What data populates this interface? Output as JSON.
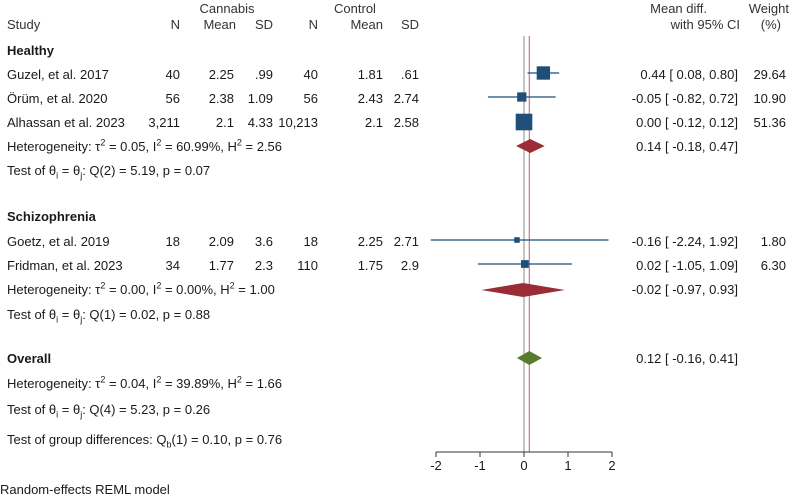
{
  "header": {
    "study": "Study",
    "group1": "Cannabis",
    "group2": "Control",
    "n": "N",
    "mean": "Mean",
    "sd": "SD",
    "effect_line1": "Mean diff.",
    "effect_line2": "with 95% CI",
    "weight_line1": "Weight",
    "weight_line2": "(%)"
  },
  "groups": [
    {
      "label": "Healthy",
      "studies": [
        {
          "name": "Guzel, et al. 2017",
          "n1": "40",
          "m1": "2.25",
          "sd1": ".99",
          "n2": "40",
          "m2": "1.81",
          "sd2": ".61",
          "ci": "0.44 [ 0.08, 0.80]",
          "weight": "29.64"
        },
        {
          "name": "Örüm, et al. 2020",
          "n1": "56",
          "m1": "2.38",
          "sd1": "1.09",
          "n2": "56",
          "m2": "2.43",
          "sd2": "2.74",
          "ci": "-0.05 [ -0.82, 0.72]",
          "weight": "10.90"
        },
        {
          "name": "Alhassan et al. 2023",
          "n1": "3,211",
          "m1": "2.1",
          "sd1": "4.33",
          "n2": "10,213",
          "m2": "2.1",
          "sd2": "2.58",
          "ci": "0.00 [ -0.12, 0.12]",
          "weight": "51.36"
        }
      ],
      "het": {
        "tau2": "0.05",
        "i2": "60.99%",
        "h2": "2.56"
      },
      "summary_ci": "0.14 [ -0.18, 0.47]",
      "test": {
        "df": "2",
        "q": "5.19",
        "p": "0.07"
      }
    },
    {
      "label": "Schizophrenia",
      "studies": [
        {
          "name": "Goetz, et al. 2019",
          "n1": "18",
          "m1": "2.09",
          "sd1": "3.6",
          "n2": "18",
          "m2": "2.25",
          "sd2": "2.71",
          "ci": "-0.16 [ -2.24, 1.92]",
          "weight": "1.80"
        },
        {
          "name": "Fridman, et al. 2023",
          "n1": "34",
          "m1": "1.77",
          "sd1": "2.3",
          "n2": "110",
          "m2": "1.75",
          "sd2": "2.9",
          "ci": "0.02 [ -1.05, 1.09]",
          "weight": "6.30"
        }
      ],
      "het": {
        "tau2": "0.00",
        "i2": "0.00%",
        "h2": "1.00"
      },
      "summary_ci": "-0.02 [ -0.97, 0.93]",
      "test": {
        "df": "1",
        "q": "0.02",
        "p": "0.88"
      }
    }
  ],
  "overall": {
    "label": "Overall",
    "summary_ci": "0.12 [ -0.16, 0.41]",
    "het": {
      "tau2": "0.04",
      "i2": "39.89%",
      "h2": "1.66"
    },
    "test": {
      "df": "4",
      "q": "5.23",
      "p": "0.26"
    },
    "group_diff": {
      "df": "1",
      "q": "0.10",
      "p": "0.76"
    }
  },
  "footer": "Random-effects REML model",
  "colors": {
    "study": "#1f4e79",
    "subgroup": "#9b2c35",
    "overall": "#5a7a2e",
    "refline": "#b56576",
    "zeroline": "#888888"
  },
  "chart_data": {
    "type": "forest",
    "xlim": [
      -2,
      2
    ],
    "ticks": [
      -2,
      -1,
      0,
      1,
      2
    ],
    "overall_effect": 0.12,
    "studies": [
      {
        "label": "Guzel, et al. 2017",
        "est": 0.44,
        "lo": 0.08,
        "hi": 0.8,
        "weight": 29.64
      },
      {
        "label": "Örüm, et al. 2020",
        "est": -0.05,
        "lo": -0.82,
        "hi": 0.72,
        "weight": 10.9
      },
      {
        "label": "Alhassan et al. 2023",
        "est": 0.0,
        "lo": -0.12,
        "hi": 0.12,
        "weight": 51.36
      },
      {
        "label": "Goetz, et al. 2019",
        "est": -0.16,
        "lo": -2.24,
        "hi": 1.92,
        "weight": 1.8
      },
      {
        "label": "Fridman, et al. 2023",
        "est": 0.02,
        "lo": -1.05,
        "hi": 1.09,
        "weight": 6.3
      }
    ],
    "subgroups": [
      {
        "label": "Healthy",
        "est": 0.14,
        "lo": -0.18,
        "hi": 0.47
      },
      {
        "label": "Schizophrenia",
        "est": -0.02,
        "lo": -0.97,
        "hi": 0.93
      }
    ],
    "overall": {
      "label": "Overall",
      "est": 0.12,
      "lo": -0.16,
      "hi": 0.41
    }
  }
}
